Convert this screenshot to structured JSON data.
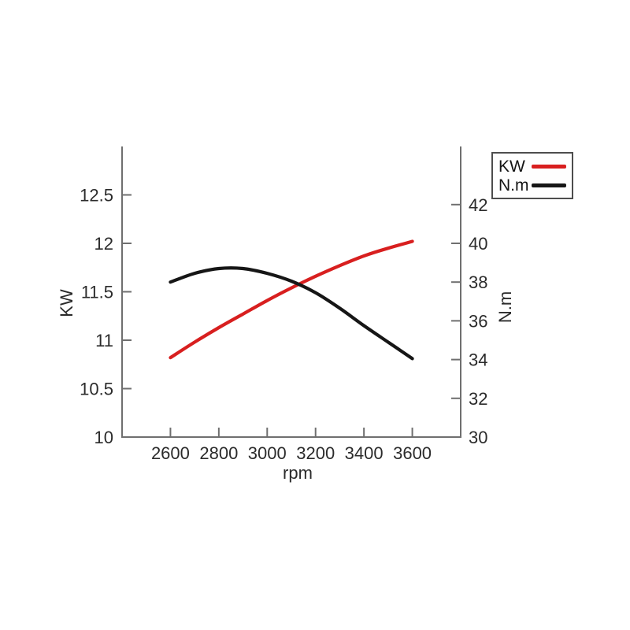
{
  "page": {
    "background": "#ffffff"
  },
  "chart_data": {
    "type": "line",
    "title": "",
    "xlabel": "rpm",
    "ylabel_left": "KW",
    "ylabel_right": "N.m",
    "x_range": [
      2400,
      3800
    ],
    "y_left_range": [
      10,
      13
    ],
    "y_right_range": [
      30,
      45
    ],
    "x_tick_values": [
      2600,
      2800,
      3000,
      3200,
      3400,
      3600
    ],
    "x_tick_labels": [
      "2600",
      "2800",
      "3000",
      "3200",
      "3400",
      "3600"
    ],
    "y_left_tick_values": [
      10,
      10.5,
      11,
      11.5,
      12,
      12.5
    ],
    "y_left_tick_labels": [
      "10",
      "10.5",
      "11",
      "11.5",
      "12",
      "12.5"
    ],
    "y_right_tick_values": [
      30,
      32,
      34,
      36,
      38,
      40,
      42
    ],
    "y_right_tick_labels": [
      "30",
      "32",
      "34",
      "36",
      "38",
      "40",
      "42"
    ],
    "grid": false,
    "legend_position": "top-right",
    "colors": {
      "axis": "#6f6f6f",
      "tick_text": "#2b2b2b"
    },
    "series": [
      {
        "name": "KW",
        "axis": "left",
        "color": "#d81f1f",
        "x": [
          2600,
          2700,
          2800,
          2900,
          3000,
          3100,
          3200,
          3300,
          3400,
          3500,
          3600
        ],
        "values": [
          10.82,
          10.98,
          11.13,
          11.27,
          11.41,
          11.54,
          11.66,
          11.77,
          11.87,
          11.95,
          12.02
        ]
      },
      {
        "name": "N.m",
        "axis": "right",
        "color": "#161616",
        "x": [
          2600,
          2700,
          2800,
          2900,
          3000,
          3100,
          3200,
          3300,
          3400,
          3500,
          3600
        ],
        "values": [
          38.0,
          38.45,
          38.7,
          38.7,
          38.45,
          38.05,
          37.45,
          36.65,
          35.75,
          34.9,
          34.05
        ]
      }
    ]
  }
}
